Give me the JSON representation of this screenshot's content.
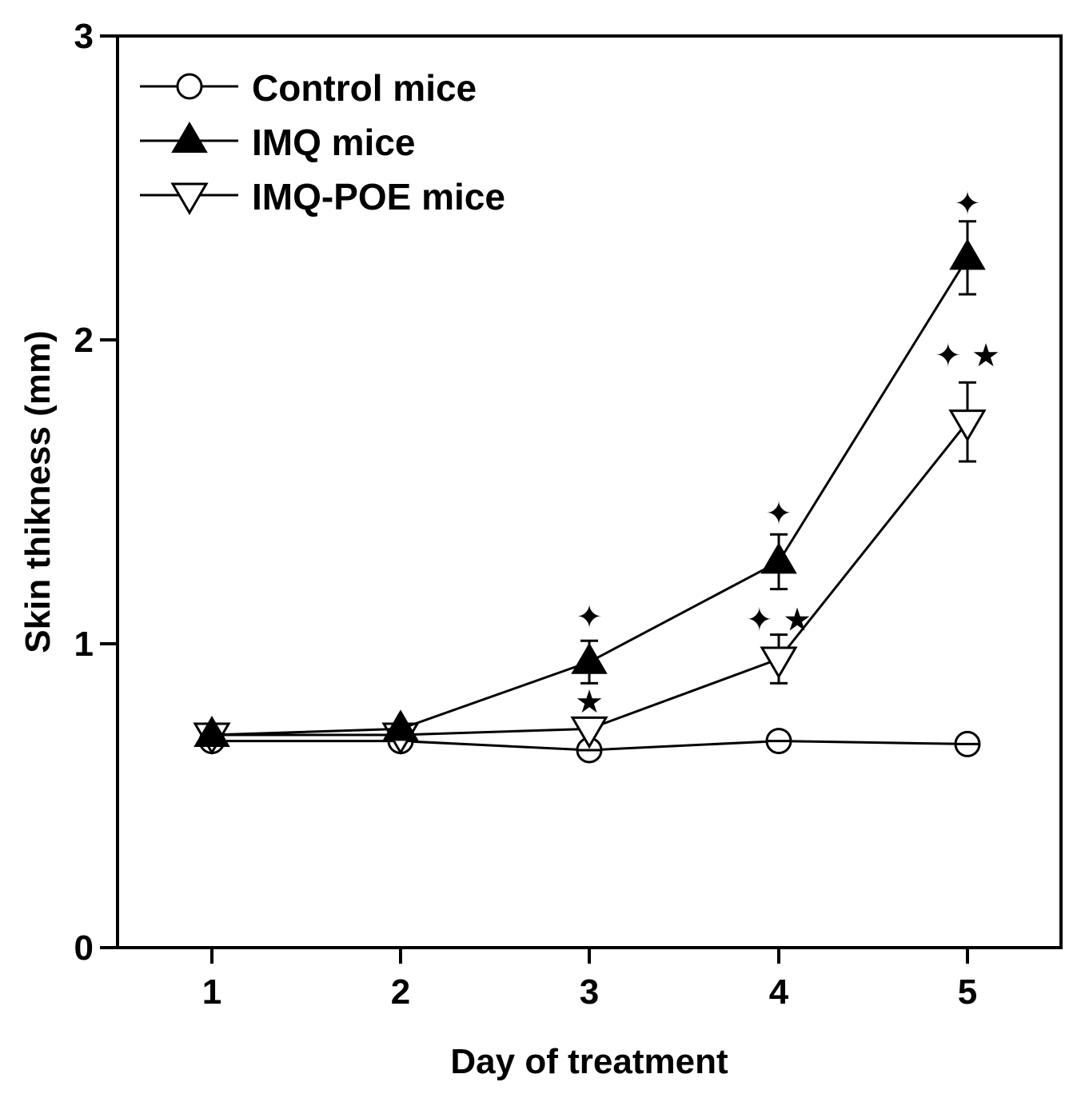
{
  "chart_data": {
    "type": "line",
    "title": "",
    "xlabel": "Day of treatment",
    "ylabel": "Skin thikness (mm)",
    "x": [
      1,
      2,
      3,
      4,
      5
    ],
    "x_tick_labels": [
      "1",
      "2",
      "3",
      "4",
      "5"
    ],
    "ylim": [
      0,
      3
    ],
    "y_ticks": [
      0,
      1,
      2,
      3
    ],
    "y_tick_labels": [
      "0",
      "1",
      "2",
      "3"
    ],
    "legend_position": "top-left",
    "series": [
      {
        "name": "Control mice",
        "marker": "open-circle",
        "values": [
          0.68,
          0.68,
          0.65,
          0.68,
          0.67
        ],
        "errors": [
          0.01,
          0.01,
          0.01,
          0.01,
          0.01
        ]
      },
      {
        "name": "IMQ mice",
        "marker": "filled-triangle-up",
        "values": [
          0.7,
          0.72,
          0.94,
          1.27,
          2.27
        ],
        "errors": [
          0.01,
          0.01,
          0.07,
          0.09,
          0.12
        ]
      },
      {
        "name": "IMQ-POE mice",
        "marker": "open-triangle-down",
        "values": [
          0.7,
          0.7,
          0.72,
          0.95,
          1.73
        ],
        "errors": [
          0.01,
          0.01,
          0.02,
          0.08,
          0.13
        ]
      }
    ],
    "annotations": [
      {
        "x": 3,
        "y": 1.09,
        "text": "✦"
      },
      {
        "x": 3,
        "y": 0.81,
        "text": "★"
      },
      {
        "x": 4,
        "y": 1.43,
        "text": "✦"
      },
      {
        "x": 4,
        "y": 1.08,
        "text": "✦ ★"
      },
      {
        "x": 5,
        "y": 2.45,
        "text": "✦"
      },
      {
        "x": 5,
        "y": 1.95,
        "text": "✦ ★"
      }
    ]
  }
}
